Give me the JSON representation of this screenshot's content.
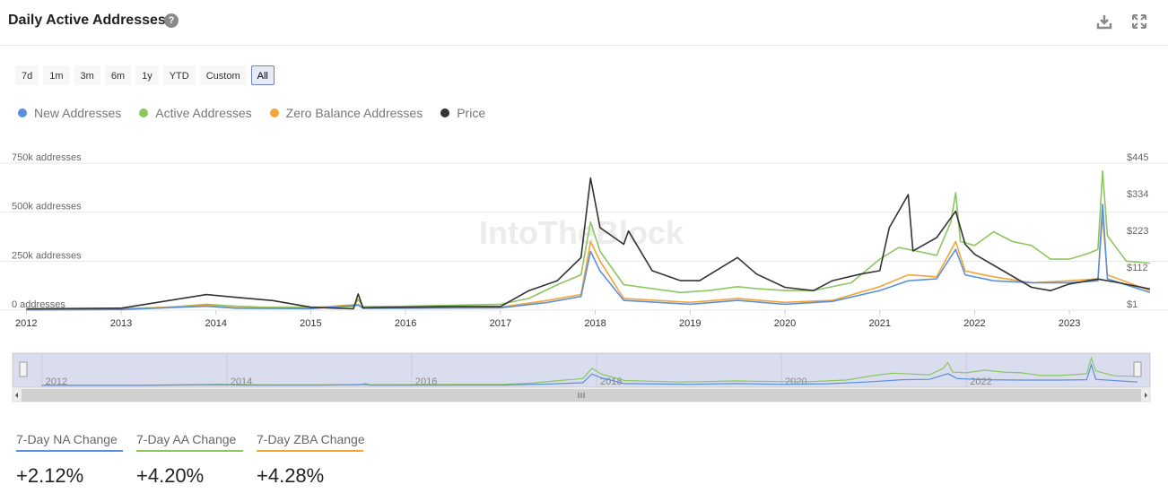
{
  "header": {
    "title": "Daily Active Addresses"
  },
  "range_buttons": [
    "7d",
    "1m",
    "3m",
    "6m",
    "1y",
    "YTD",
    "Custom",
    "All"
  ],
  "active_range": "All",
  "legend": [
    {
      "label": "New Addresses",
      "color": "#5b8fde"
    },
    {
      "label": "Active Addresses",
      "color": "#8cc660"
    },
    {
      "label": "Zero Balance Addresses",
      "color": "#f2a638"
    },
    {
      "label": "Price",
      "color": "#333333"
    }
  ],
  "watermark": "IntoTheBlock",
  "chart_data": {
    "type": "line",
    "y_left": {
      "ticks": [
        "0 addresses",
        "250k addresses",
        "500k addresses",
        "750k addresses"
      ],
      "tick_values": [
        0,
        250000,
        500000,
        750000
      ],
      "range": [
        0,
        750000
      ]
    },
    "y_right": {
      "ticks": [
        "$1",
        "$112",
        "$223",
        "$334",
        "$445"
      ],
      "tick_values": [
        1,
        112,
        223,
        334,
        445
      ],
      "range": [
        1,
        445
      ]
    },
    "x_ticks": [
      "2012",
      "2013",
      "2014",
      "2015",
      "2016",
      "2017",
      "2018",
      "2019",
      "2020",
      "2021",
      "2022",
      "2023"
    ],
    "x_range": [
      2011.95,
      2023.85
    ],
    "navigator_ticks": [
      "2012",
      "2014",
      "2016",
      "2018",
      "2020",
      "2022"
    ],
    "series": [
      {
        "name": "Active Addresses",
        "color": "#8cc660",
        "axis": "left",
        "points": [
          [
            2012,
            4000
          ],
          [
            2013,
            8000
          ],
          [
            2013.5,
            15000
          ],
          [
            2013.9,
            30000
          ],
          [
            2014.2,
            20000
          ],
          [
            2014.5,
            15000
          ],
          [
            2015,
            15000
          ],
          [
            2015.45,
            18000
          ],
          [
            2015.5,
            55000
          ],
          [
            2015.55,
            18000
          ],
          [
            2016,
            20000
          ],
          [
            2016.5,
            25000
          ],
          [
            2017,
            30000
          ],
          [
            2017.3,
            60000
          ],
          [
            2017.6,
            130000
          ],
          [
            2017.85,
            180000
          ],
          [
            2017.95,
            450000
          ],
          [
            2018.05,
            300000
          ],
          [
            2018.3,
            130000
          ],
          [
            2018.6,
            110000
          ],
          [
            2018.9,
            90000
          ],
          [
            2019.2,
            100000
          ],
          [
            2019.5,
            120000
          ],
          [
            2019.7,
            110000
          ],
          [
            2020,
            100000
          ],
          [
            2020.3,
            100000
          ],
          [
            2020.7,
            140000
          ],
          [
            2021.0,
            260000
          ],
          [
            2021.2,
            320000
          ],
          [
            2021.4,
            300000
          ],
          [
            2021.6,
            280000
          ],
          [
            2021.75,
            450000
          ],
          [
            2021.8,
            600000
          ],
          [
            2021.85,
            350000
          ],
          [
            2022.0,
            330000
          ],
          [
            2022.2,
            400000
          ],
          [
            2022.4,
            350000
          ],
          [
            2022.6,
            330000
          ],
          [
            2022.8,
            260000
          ],
          [
            2023.0,
            260000
          ],
          [
            2023.2,
            290000
          ],
          [
            2023.3,
            310000
          ],
          [
            2023.35,
            710000
          ],
          [
            2023.4,
            380000
          ],
          [
            2023.6,
            250000
          ],
          [
            2023.85,
            240000
          ]
        ]
      },
      {
        "name": "Zero Balance Addresses",
        "color": "#f2a638",
        "axis": "left",
        "points": [
          [
            2012,
            2000
          ],
          [
            2013,
            4000
          ],
          [
            2013.9,
            25000
          ],
          [
            2014.2,
            12000
          ],
          [
            2015,
            10000
          ],
          [
            2015.5,
            30000
          ],
          [
            2015.55,
            12000
          ],
          [
            2016,
            12000
          ],
          [
            2017,
            15000
          ],
          [
            2017.5,
            50000
          ],
          [
            2017.85,
            80000
          ],
          [
            2017.95,
            350000
          ],
          [
            2018.05,
            250000
          ],
          [
            2018.3,
            60000
          ],
          [
            2019,
            40000
          ],
          [
            2019.5,
            60000
          ],
          [
            2020,
            40000
          ],
          [
            2020.5,
            50000
          ],
          [
            2021,
            120000
          ],
          [
            2021.3,
            180000
          ],
          [
            2021.6,
            170000
          ],
          [
            2021.8,
            350000
          ],
          [
            2021.9,
            200000
          ],
          [
            2022.2,
            170000
          ],
          [
            2022.6,
            140000
          ],
          [
            2023,
            150000
          ],
          [
            2023.3,
            160000
          ],
          [
            2023.35,
            480000
          ],
          [
            2023.4,
            180000
          ],
          [
            2023.85,
            100000
          ]
        ]
      },
      {
        "name": "New Addresses",
        "color": "#5b8fde",
        "axis": "left",
        "points": [
          [
            2012,
            1500
          ],
          [
            2013,
            3000
          ],
          [
            2013.9,
            20000
          ],
          [
            2014.2,
            10000
          ],
          [
            2015,
            8000
          ],
          [
            2015.5,
            25000
          ],
          [
            2015.55,
            10000
          ],
          [
            2016,
            10000
          ],
          [
            2017,
            12000
          ],
          [
            2017.5,
            40000
          ],
          [
            2017.85,
            70000
          ],
          [
            2017.95,
            300000
          ],
          [
            2018.05,
            200000
          ],
          [
            2018.3,
            50000
          ],
          [
            2019,
            30000
          ],
          [
            2019.5,
            50000
          ],
          [
            2020,
            30000
          ],
          [
            2020.5,
            45000
          ],
          [
            2021,
            100000
          ],
          [
            2021.3,
            150000
          ],
          [
            2021.6,
            160000
          ],
          [
            2021.8,
            310000
          ],
          [
            2021.9,
            180000
          ],
          [
            2022.2,
            150000
          ],
          [
            2022.6,
            140000
          ],
          [
            2023,
            140000
          ],
          [
            2023.3,
            150000
          ],
          [
            2023.35,
            540000
          ],
          [
            2023.4,
            160000
          ],
          [
            2023.85,
            90000
          ]
        ]
      },
      {
        "name": "Price",
        "color": "#333333",
        "axis": "right",
        "points": [
          [
            2012,
            5
          ],
          [
            2013,
            7
          ],
          [
            2013.9,
            48
          ],
          [
            2014.2,
            40
          ],
          [
            2014.6,
            30
          ],
          [
            2015,
            10
          ],
          [
            2015.45,
            5
          ],
          [
            2015.5,
            50
          ],
          [
            2015.55,
            8
          ],
          [
            2016,
            10
          ],
          [
            2016.5,
            12
          ],
          [
            2017,
            12
          ],
          [
            2017.3,
            60
          ],
          [
            2017.6,
            90
          ],
          [
            2017.85,
            160
          ],
          [
            2017.95,
            400
          ],
          [
            2018.05,
            250
          ],
          [
            2018.3,
            200
          ],
          [
            2018.35,
            240
          ],
          [
            2018.6,
            120
          ],
          [
            2018.9,
            90
          ],
          [
            2019.1,
            90
          ],
          [
            2019.5,
            160
          ],
          [
            2019.7,
            110
          ],
          [
            2020,
            70
          ],
          [
            2020.3,
            60
          ],
          [
            2020.5,
            90
          ],
          [
            2020.8,
            110
          ],
          [
            2021,
            120
          ],
          [
            2021.1,
            250
          ],
          [
            2021.3,
            350
          ],
          [
            2021.35,
            180
          ],
          [
            2021.6,
            220
          ],
          [
            2021.8,
            300
          ],
          [
            2021.9,
            200
          ],
          [
            2022,
            170
          ],
          [
            2022.3,
            120
          ],
          [
            2022.6,
            70
          ],
          [
            2022.8,
            60
          ],
          [
            2023,
            80
          ],
          [
            2023.3,
            95
          ],
          [
            2023.5,
            85
          ],
          [
            2023.85,
            65
          ]
        ]
      }
    ]
  },
  "stats": [
    {
      "label": "7-Day NA Change",
      "value": "+2.12%",
      "color": "#5b8fde"
    },
    {
      "label": "7-Day AA Change",
      "value": "+4.20%",
      "color": "#8cc660"
    },
    {
      "label": "7-Day ZBA Change",
      "value": "+4.28%",
      "color": "#f2a638"
    }
  ]
}
